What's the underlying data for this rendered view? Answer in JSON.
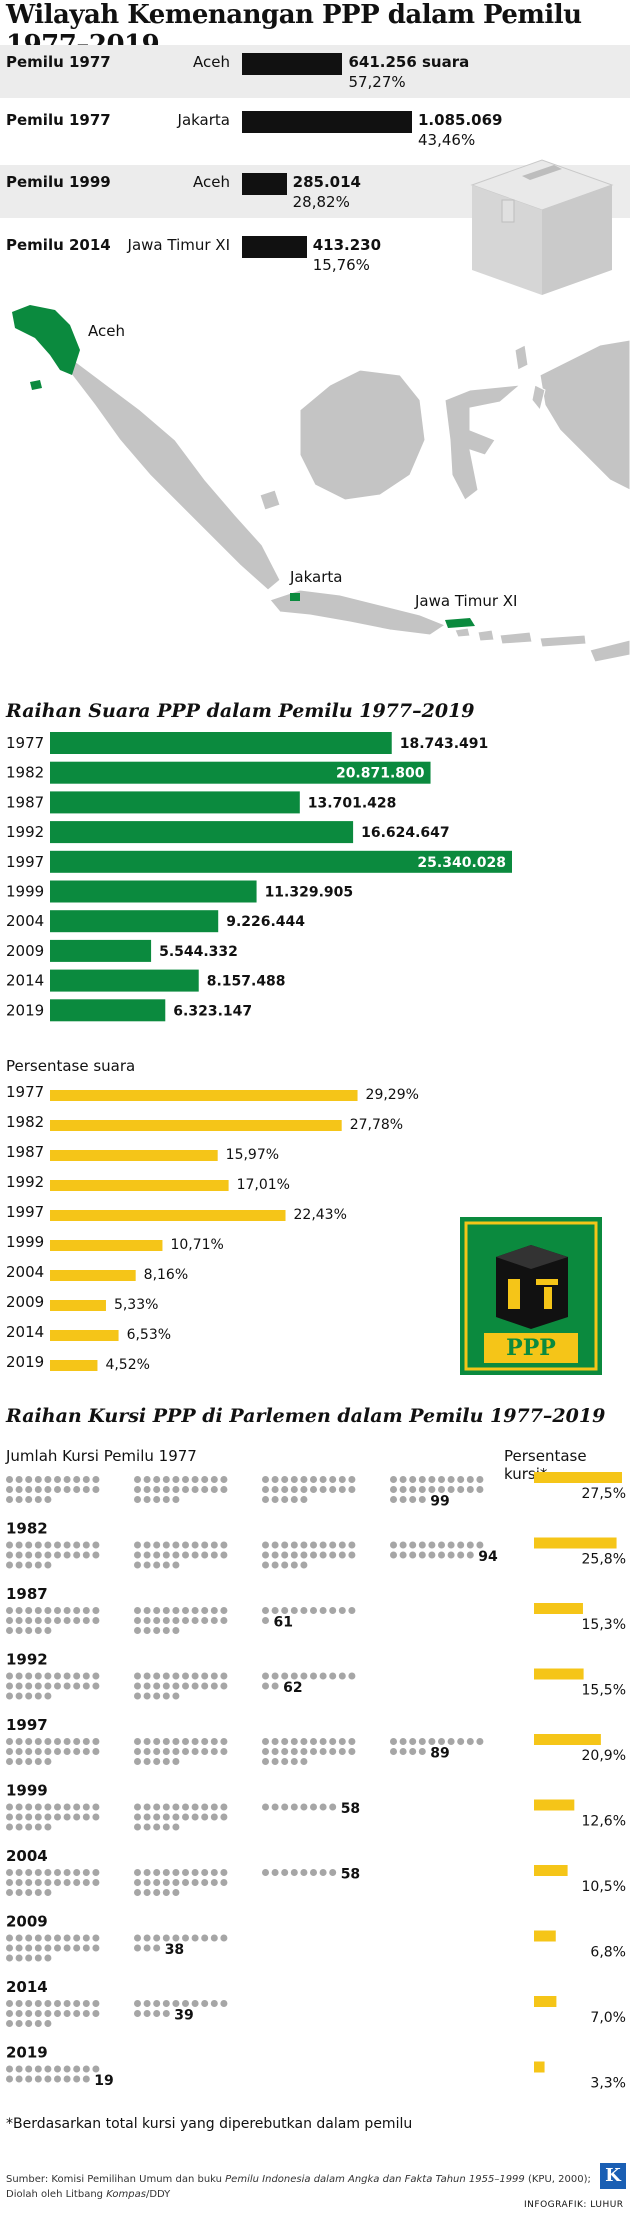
{
  "title": "Wilayah Kemenangan PPP dalam Pemilu 1977–2019",
  "wins": [
    {
      "election": "Pemilu 1977",
      "region": "Aceh",
      "votes": "641.256 suara",
      "pct": "57,27%",
      "votes_n": 641256
    },
    {
      "election": "Pemilu 1977",
      "region": "Jakarta",
      "votes": "1.085.069",
      "pct": "43,46%",
      "votes_n": 1085069
    },
    {
      "election": "Pemilu 1999",
      "region": "Aceh",
      "votes": "285.014",
      "pct": "28,82%",
      "votes_n": 285014
    },
    {
      "election": "Pemilu 2014",
      "region": "Jawa Timur XI",
      "votes": "413.230",
      "pct": "15,76%",
      "votes_n": 413230
    }
  ],
  "map_labels": {
    "aceh": "Aceh",
    "jakarta": "Jakarta",
    "jatim": "Jawa Timur XI"
  },
  "colors": {
    "green": "#0b8a3e",
    "yellow": "#f5c518",
    "gray": "#bdbdbd",
    "dot": "#a6a6a6",
    "black": "#111111",
    "box": "#d9d9d9"
  },
  "chart_data": [
    {
      "type": "bar",
      "title": "Raihan Suara PPP dalam Pemilu 1977–2019",
      "categories": [
        "1977",
        "1982",
        "1987",
        "1992",
        "1997",
        "1999",
        "2004",
        "2009",
        "2014",
        "2019"
      ],
      "values": [
        18743491,
        20871800,
        13701428,
        16624647,
        25340028,
        11329905,
        9226444,
        5544332,
        8157488,
        6323147
      ],
      "labels": [
        "18.743.491",
        "20.871.800",
        "13.701.428",
        "16.624.647",
        "25.340.028",
        "11.329.905",
        "9.226.444",
        "5.544.332",
        "8.157.488",
        "6.323.147"
      ],
      "xlim": [
        0,
        25340028
      ]
    },
    {
      "type": "bar",
      "title": "Persentase suara",
      "categories": [
        "1977",
        "1982",
        "1987",
        "1992",
        "1997",
        "1999",
        "2004",
        "2009",
        "2014",
        "2019"
      ],
      "values": [
        29.29,
        27.78,
        15.97,
        17.01,
        22.43,
        10.71,
        8.16,
        5.33,
        6.53,
        4.52
      ],
      "labels": [
        "29,29%",
        "27,78%",
        "15,97%",
        "17,01%",
        "22,43%",
        "10,71%",
        "8,16%",
        "5,33%",
        "6,53%",
        "4,52%"
      ],
      "xlim": [
        0,
        30
      ]
    },
    {
      "type": "bar",
      "title": "Raihan Kursi PPP di Parlemen dalam Pemilu 1977–2019",
      "series_label": "Jumlah Kursi Pemilu",
      "pct_label": "Persentase kursi*",
      "categories": [
        "1977",
        "1982",
        "1987",
        "1992",
        "1997",
        "1999",
        "2004",
        "2009",
        "2014",
        "2019"
      ],
      "seats": [
        99,
        94,
        61,
        62,
        89,
        58,
        58,
        38,
        39,
        19
      ],
      "pct": [
        27.5,
        25.8,
        15.3,
        15.5,
        20.9,
        12.6,
        10.5,
        6.8,
        7.0,
        3.3
      ],
      "pct_labels": [
        "27,5%",
        "25,8%",
        "15,3%",
        "15,5%",
        "20,9%",
        "12,6%",
        "10,5%",
        "6,8%",
        "7,0%",
        "3,3%"
      ]
    }
  ],
  "logo_text": "PPP",
  "footnote": "*Berdasarkan total kursi yang diperebutkan dalam pemilu",
  "source_line1_a": "Sumber: Komisi Pemilihan Umum dan buku ",
  "source_line1_b": "Pemilu Indonesia dalam Angka dan Fakta Tahun 1955–1999",
  "source_line1_c": " (KPU, 2000);",
  "source_line2_a": "Diolah oleh Litbang ",
  "source_line2_b": "Kompas",
  "source_line2_c": "/DDY",
  "credit": "INFOGRAFIK: LUHUR",
  "brand_letter": "K"
}
